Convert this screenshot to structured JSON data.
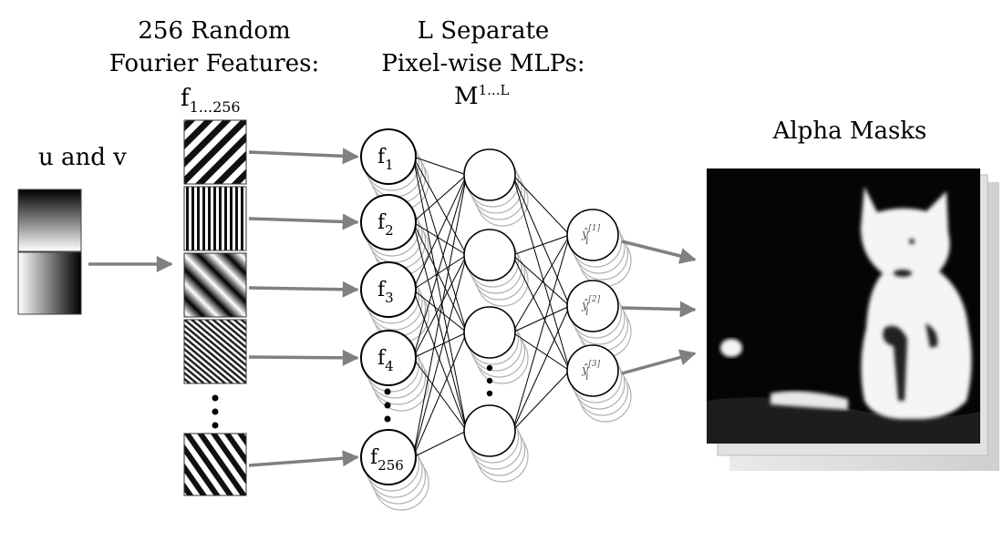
{
  "labels": {
    "uv": "u and v",
    "rff_line1": "256 Random",
    "rff_line2": "Fourier Features:",
    "rff_f": "f",
    "rff_sub": "1...256",
    "mlp_line1": "L Separate",
    "mlp_line2": "Pixel-wise MLPs:",
    "mlp_m": "M",
    "mlp_sup": "1...L",
    "alpha": "Alpha Masks"
  },
  "feature_nodes": [
    {
      "base": "f",
      "sub": "1"
    },
    {
      "base": "f",
      "sub": "2"
    },
    {
      "base": "f",
      "sub": "3"
    },
    {
      "base": "f",
      "sub": "4"
    },
    {
      "base": "f",
      "sub": "256"
    }
  ],
  "output_nodes": [
    {
      "base": "ŷ",
      "sub": "i",
      "sup": "[1]"
    },
    {
      "base": "ŷ",
      "sub": "i",
      "sup": "[2]"
    },
    {
      "base": "ŷ",
      "sub": "i",
      "sup": "[3]"
    }
  ],
  "colors": {
    "arrow": "#808080",
    "node_stroke": "#000000",
    "shadow_stroke": "#b0b0b0"
  }
}
